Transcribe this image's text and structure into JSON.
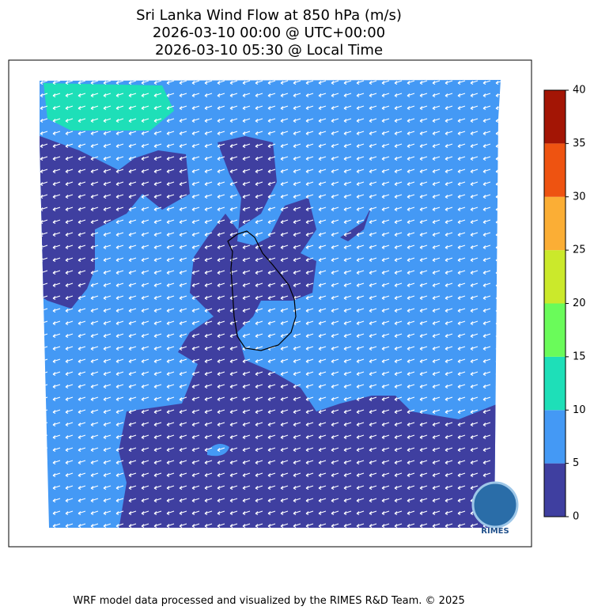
{
  "title": [
    "Sri Lanka Wind Flow at 850 hPa (m/s)",
    "2026-03-10 00:00 @ UTC+00:00",
    "2026-03-10 05:30 @ Local Time"
  ],
  "colorbar": {
    "ticks": [
      0,
      5,
      10,
      15,
      20,
      25,
      30,
      35,
      40
    ],
    "colors": [
      "#3f3fa0",
      "#4499f5",
      "#1edfb8",
      "#6afb5a",
      "#cbe92b",
      "#fbae35",
      "#ee5311",
      "#a31505"
    ]
  },
  "logo_text": "RIMES",
  "footer": "WRF model data processed and visualized by the RIMES R&D Team. © 2025"
}
